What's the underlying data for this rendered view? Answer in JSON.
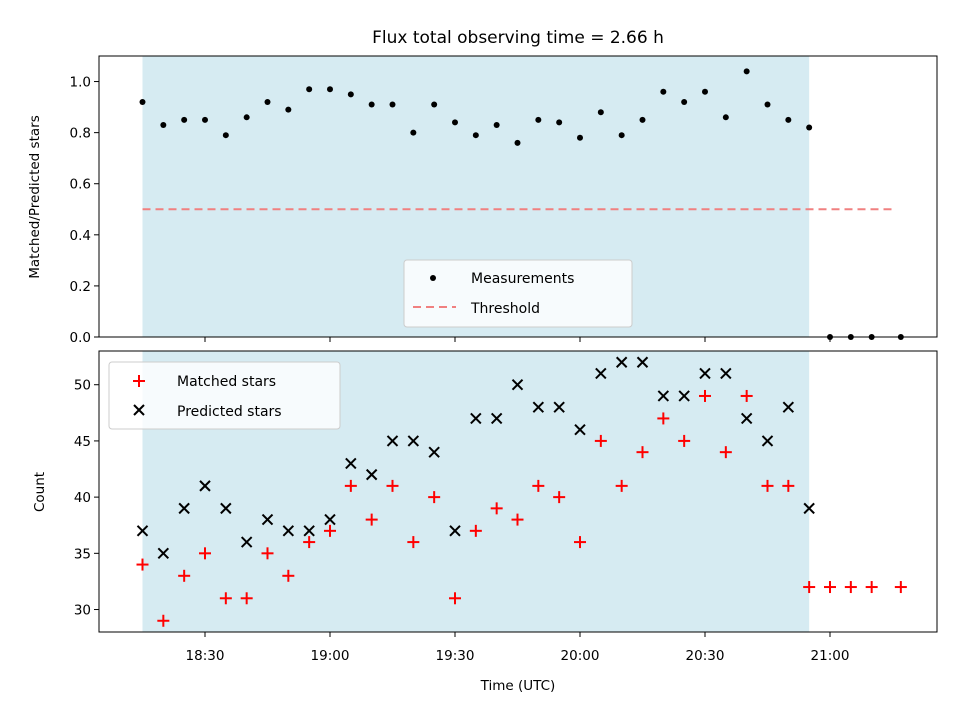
{
  "chart_data": {
    "type": "scatter",
    "title": "Flux total observing time = 2.66 h",
    "xlabel": "Time (UTC)",
    "x_ticks": [
      "18:30",
      "19:00",
      "19:30",
      "20:00",
      "20:30",
      "21:00"
    ],
    "shaded_interval": {
      "start": "18:15",
      "end": "20:55",
      "color": "#add8e6"
    },
    "panels": [
      {
        "ylabel": "Matched/Predicted stars",
        "ylim": [
          0.0,
          1.1
        ],
        "y_ticks": [
          "0.0",
          "0.2",
          "0.4",
          "0.6",
          "0.8",
          "1.0"
        ],
        "legend_position": "lower-center",
        "series": [
          {
            "name": "Measurements",
            "marker": "dot",
            "color": "#000000",
            "points": [
              [
                "18:15",
                0.92
              ],
              [
                "18:20",
                0.83
              ],
              [
                "18:25",
                0.85
              ],
              [
                "18:30",
                0.85
              ],
              [
                "18:35",
                0.79
              ],
              [
                "18:40",
                0.86
              ],
              [
                "18:45",
                0.92
              ],
              [
                "18:50",
                0.89
              ],
              [
                "18:55",
                0.97
              ],
              [
                "19:00",
                0.97
              ],
              [
                "19:05",
                0.95
              ],
              [
                "19:10",
                0.91
              ],
              [
                "19:15",
                0.91
              ],
              [
                "19:20",
                0.8
              ],
              [
                "19:25",
                0.91
              ],
              [
                "19:30",
                0.84
              ],
              [
                "19:35",
                0.79
              ],
              [
                "19:40",
                0.83
              ],
              [
                "19:45",
                0.76
              ],
              [
                "19:50",
                0.85
              ],
              [
                "19:55",
                0.84
              ],
              [
                "20:00",
                0.78
              ],
              [
                "20:05",
                0.88
              ],
              [
                "20:10",
                0.79
              ],
              [
                "20:15",
                0.85
              ],
              [
                "20:20",
                0.96
              ],
              [
                "20:25",
                0.92
              ],
              [
                "20:30",
                0.96
              ],
              [
                "20:35",
                0.86
              ],
              [
                "20:40",
                1.04
              ],
              [
                "20:45",
                0.91
              ],
              [
                "20:50",
                0.85
              ],
              [
                "20:55",
                0.82
              ],
              [
                "21:00",
                0.0
              ],
              [
                "21:05",
                0.0
              ],
              [
                "21:10",
                0.0
              ],
              [
                "21:17",
                0.0
              ]
            ]
          },
          {
            "name": "Threshold",
            "marker": "dashed-line",
            "color": "#f08080",
            "points": [
              [
                "18:15",
                0.5
              ],
              [
                "21:15",
                0.5
              ]
            ]
          }
        ]
      },
      {
        "ylabel": "Count",
        "ylim": [
          28,
          53
        ],
        "y_ticks": [
          "30",
          "35",
          "40",
          "45",
          "50"
        ],
        "legend_position": "upper-left",
        "series": [
          {
            "name": "Matched stars",
            "marker": "plus",
            "color": "#ff0000",
            "points": [
              [
                "18:15",
                34
              ],
              [
                "18:20",
                29
              ],
              [
                "18:25",
                33
              ],
              [
                "18:30",
                35
              ],
              [
                "18:35",
                31
              ],
              [
                "18:40",
                31
              ],
              [
                "18:45",
                35
              ],
              [
                "18:50",
                33
              ],
              [
                "18:55",
                36
              ],
              [
                "19:00",
                37
              ],
              [
                "19:05",
                41
              ],
              [
                "19:10",
                38
              ],
              [
                "19:15",
                41
              ],
              [
                "19:20",
                36
              ],
              [
                "19:25",
                40
              ],
              [
                "19:30",
                31
              ],
              [
                "19:35",
                37
              ],
              [
                "19:40",
                39
              ],
              [
                "19:45",
                38
              ],
              [
                "19:50",
                41
              ],
              [
                "19:55",
                40
              ],
              [
                "20:00",
                36
              ],
              [
                "20:05",
                45
              ],
              [
                "20:10",
                41
              ],
              [
                "20:15",
                44
              ],
              [
                "20:20",
                47
              ],
              [
                "20:25",
                45
              ],
              [
                "20:30",
                49
              ],
              [
                "20:35",
                44
              ],
              [
                "20:40",
                49
              ],
              [
                "20:45",
                41
              ],
              [
                "20:50",
                41
              ],
              [
                "20:55",
                32
              ],
              [
                "21:00",
                32
              ],
              [
                "21:05",
                32
              ],
              [
                "21:10",
                32
              ],
              [
                "21:17",
                32
              ]
            ]
          },
          {
            "name": "Predicted stars",
            "marker": "cross",
            "color": "#000000",
            "points": [
              [
                "18:15",
                37
              ],
              [
                "18:20",
                35
              ],
              [
                "18:25",
                39
              ],
              [
                "18:30",
                41
              ],
              [
                "18:35",
                39
              ],
              [
                "18:40",
                36
              ],
              [
                "18:45",
                38
              ],
              [
                "18:50",
                37
              ],
              [
                "18:55",
                37
              ],
              [
                "19:00",
                38
              ],
              [
                "19:05",
                43
              ],
              [
                "19:10",
                42
              ],
              [
                "19:15",
                45
              ],
              [
                "19:20",
                45
              ],
              [
                "19:25",
                44
              ],
              [
                "19:30",
                37
              ],
              [
                "19:35",
                47
              ],
              [
                "19:40",
                47
              ],
              [
                "19:45",
                50
              ],
              [
                "19:50",
                48
              ],
              [
                "19:55",
                48
              ],
              [
                "20:00",
                46
              ],
              [
                "20:05",
                51
              ],
              [
                "20:10",
                52
              ],
              [
                "20:15",
                52
              ],
              [
                "20:20",
                49
              ],
              [
                "20:25",
                49
              ],
              [
                "20:30",
                51
              ],
              [
                "20:35",
                51
              ],
              [
                "20:40",
                47
              ],
              [
                "20:45",
                45
              ],
              [
                "20:50",
                48
              ],
              [
                "20:55",
                39
              ]
            ]
          }
        ]
      }
    ]
  }
}
